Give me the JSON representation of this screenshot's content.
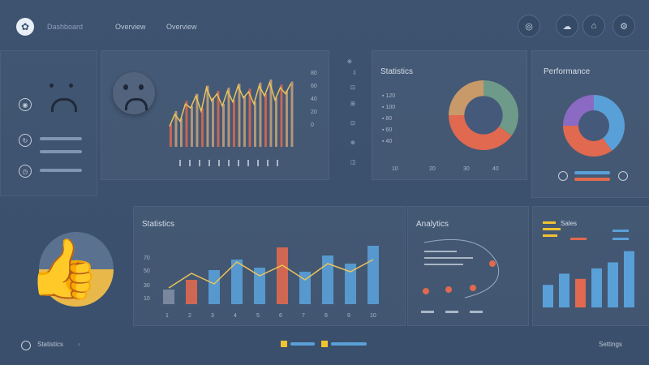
{
  "header": {
    "logo_icon": "leaf-logo-icon",
    "nav": [
      "Dashboard",
      "Overview"
    ],
    "actions": [
      {
        "icon": "chart-icon",
        "glyph": "◎"
      },
      {
        "icon": "cloud-icon",
        "glyph": "☁"
      },
      {
        "icon": "bell-icon",
        "glyph": "⌂"
      },
      {
        "icon": "settings-icon",
        "glyph": "⚙"
      }
    ]
  },
  "panels": {
    "sentiment": {
      "face": "sad-face-icon"
    },
    "donut1": {
      "title": "Statistics"
    },
    "donut2": {
      "title": "Performance"
    },
    "bars": {
      "title": "Statistics"
    },
    "network": {
      "title": "Analytics"
    },
    "legend_bars": {
      "title": "Sales"
    }
  },
  "footer": {
    "left_label": "Statistics",
    "right_label": "Settings"
  },
  "colors": {
    "accent_blue": "#5aa0d8",
    "accent_orange": "#e0694f",
    "accent_yellow": "#f2c230",
    "teal": "#6e9a8a"
  },
  "chart_data": [
    {
      "type": "bar",
      "title": "",
      "values": [
        22,
        35,
        28,
        45,
        40,
        52,
        38,
        60,
        48,
        55,
        42,
        58,
        46,
        62,
        50,
        57,
        44,
        63,
        52,
        66,
        48,
        61,
        55,
        64
      ],
      "overlay_line": [
        20,
        32,
        25,
        42,
        38,
        50,
        35,
        58,
        45,
        52,
        40,
        55,
        44,
        60,
        48,
        54,
        42,
        60,
        50,
        63,
        46,
        58,
        52,
        62
      ]
    },
    {
      "type": "bar",
      "title": "Statistics",
      "categories": [
        "1",
        "2",
        "3",
        "4",
        "5",
        "6",
        "7",
        "8",
        "9",
        "10"
      ],
      "values": [
        18,
        30,
        42,
        55,
        45,
        70,
        40,
        60,
        50,
        72
      ],
      "colors": [
        "#7f8ea3",
        "#e0694f",
        "#5aa0d8",
        "#5aa0d8",
        "#5aa0d8",
        "#e0694f",
        "#5aa0d8",
        "#5aa0d8",
        "#5aa0d8",
        "#5aa0d8"
      ],
      "overlay_line": [
        20,
        38,
        25,
        52,
        35,
        48,
        30,
        50,
        40,
        55
      ]
    },
    {
      "type": "bar",
      "title": "Sales",
      "values": [
        30,
        45,
        38,
        52,
        60,
        75
      ],
      "colors": [
        "#5aa0d8",
        "#5aa0d8",
        "#e0694f",
        "#5aa0d8",
        "#5aa0d8",
        "#5aa0d8"
      ]
    },
    {
      "type": "pie",
      "values": [
        35,
        40,
        25
      ],
      "colors": [
        "#6e9a8a",
        "#e0694f",
        "#c89a6a"
      ]
    },
    {
      "type": "pie",
      "values": [
        40,
        35,
        25
      ],
      "colors": [
        "#5aa0d8",
        "#e0694f",
        "#8a6ac2"
      ]
    }
  ]
}
